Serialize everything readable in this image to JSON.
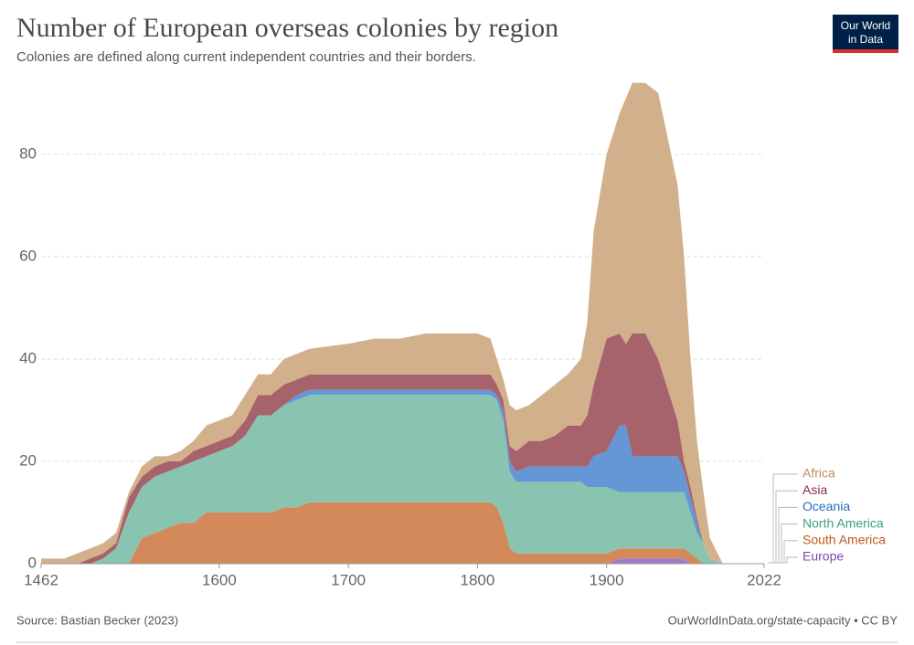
{
  "chart_data": {
    "type": "stacked_area",
    "title": "Number of European overseas colonies by region",
    "subtitle": "Colonies are defined along current independent countries and their borders.",
    "source": "Source: Bastian Becker (2023)",
    "footer_right": "OurWorldInData.org/state-capacity • CC BY",
    "logo": [
      "Our World",
      "in Data"
    ],
    "x": [
      1462,
      1480,
      1490,
      1500,
      1510,
      1520,
      1530,
      1540,
      1550,
      1560,
      1570,
      1580,
      1590,
      1600,
      1610,
      1620,
      1630,
      1640,
      1650,
      1660,
      1670,
      1700,
      1720,
      1740,
      1760,
      1780,
      1800,
      1810,
      1815,
      1820,
      1825,
      1830,
      1840,
      1850,
      1860,
      1870,
      1880,
      1885,
      1890,
      1900,
      1910,
      1915,
      1920,
      1930,
      1940,
      1950,
      1955,
      1960,
      1965,
      1970,
      1975,
      1980,
      1990,
      2022
    ],
    "xlim": [
      1462,
      2022
    ],
    "xticks": [
      1462,
      1600,
      1700,
      1800,
      1900,
      2022
    ],
    "ylim": [
      0,
      95
    ],
    "yticks": [
      0,
      20,
      40,
      60,
      80
    ],
    "grid": true,
    "series": [
      {
        "name": "Europe",
        "color": "#a07cc8",
        "label_color": "#7a4ba8",
        "values": [
          0,
          0,
          0,
          0,
          0,
          0,
          0,
          0,
          0,
          0,
          0,
          0,
          0,
          0,
          0,
          0,
          0,
          0,
          0,
          0,
          0,
          0,
          0,
          0,
          0,
          0,
          0,
          0,
          0,
          0,
          0,
          0,
          0,
          0,
          0,
          0,
          0,
          0,
          0,
          0,
          1,
          1,
          1,
          1,
          1,
          1,
          1,
          1,
          0,
          0,
          0,
          0,
          0,
          0
        ]
      },
      {
        "name": "South America",
        "color": "#d4895a",
        "label_color": "#c05917",
        "values": [
          0,
          0,
          0,
          0,
          0,
          0,
          0,
          5,
          6,
          7,
          8,
          8,
          10,
          10,
          10,
          10,
          10,
          10,
          11,
          11,
          12,
          12,
          12,
          12,
          12,
          12,
          12,
          12,
          11,
          8,
          3,
          2,
          2,
          2,
          2,
          2,
          2,
          2,
          2,
          2,
          2,
          2,
          2,
          2,
          2,
          2,
          2,
          2,
          2,
          1,
          0,
          0,
          0,
          0
        ]
      },
      {
        "name": "North America",
        "color": "#88c4b0",
        "label_color": "#3a9e85",
        "values": [
          0,
          0,
          0,
          0,
          1,
          3,
          10,
          10,
          11,
          11,
          11,
          12,
          11,
          12,
          13,
          15,
          19,
          19,
          20,
          21,
          21,
          21,
          21,
          21,
          21,
          21,
          21,
          21,
          21,
          20,
          15,
          14,
          14,
          14,
          14,
          14,
          14,
          13,
          13,
          13,
          11,
          11,
          11,
          11,
          11,
          11,
          11,
          11,
          8,
          5,
          4,
          1,
          0,
          0
        ]
      },
      {
        "name": "Oceania",
        "color": "#6596d6",
        "label_color": "#286bbb",
        "values": [
          0,
          0,
          0,
          0,
          0,
          0,
          0,
          0,
          0,
          0,
          0,
          0,
          0,
          0,
          0,
          0,
          0,
          0,
          0,
          1,
          1,
          1,
          1,
          1,
          1,
          1,
          1,
          1,
          1,
          2,
          2,
          2,
          3,
          3,
          3,
          3,
          3,
          4,
          6,
          7,
          13,
          13,
          7,
          7,
          7,
          7,
          7,
          4,
          3,
          2,
          0,
          0,
          0,
          0
        ]
      },
      {
        "name": "Asia",
        "color": "#a7636b",
        "label_color": "#8c2c44",
        "values": [
          0,
          0,
          0,
          1,
          1,
          1,
          3,
          2,
          2,
          2,
          1,
          2,
          2,
          2,
          2,
          3,
          4,
          4,
          4,
          3,
          3,
          3,
          3,
          3,
          3,
          3,
          3,
          3,
          2,
          2,
          3,
          4,
          5,
          5,
          6,
          8,
          8,
          10,
          14,
          22,
          18,
          16,
          24,
          24,
          19,
          11,
          7,
          2,
          2,
          1,
          0,
          0,
          0,
          0
        ]
      },
      {
        "name": "Africa",
        "color": "#d2b08b",
        "label_color": "#b88f5e",
        "values": [
          1,
          1,
          2,
          2,
          2,
          2,
          1,
          2,
          2,
          1,
          2,
          2,
          4,
          4,
          4,
          5,
          4,
          4,
          5,
          5,
          5,
          6,
          7,
          7,
          8,
          8,
          8,
          7,
          5,
          4,
          8,
          8,
          7,
          9,
          10,
          10,
          13,
          18,
          30,
          36,
          43,
          48,
          49,
          49,
          52,
          48,
          46,
          40,
          25,
          15,
          10,
          4,
          0,
          0
        ]
      }
    ]
  }
}
